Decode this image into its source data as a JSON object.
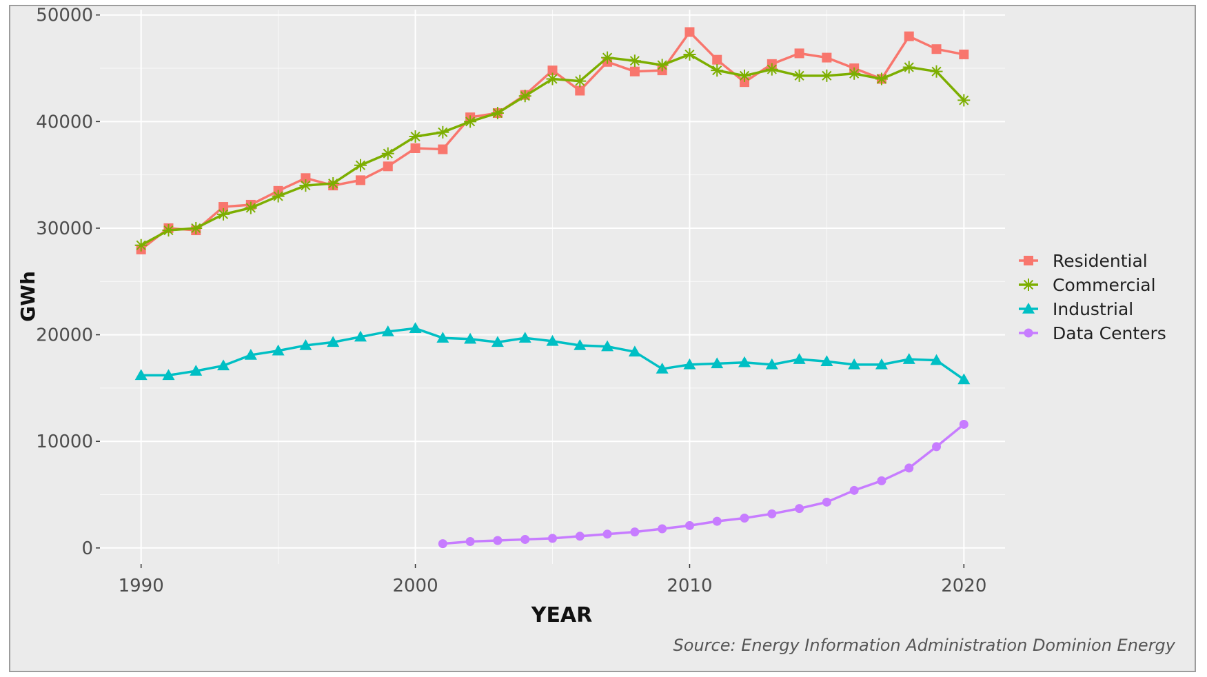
{
  "chart_data": {
    "type": "line",
    "title": "",
    "xlabel": "YEAR",
    "ylabel": "GWh",
    "xlim": [
      1988.5,
      2021.5
    ],
    "ylim": [
      -1500,
      50500
    ],
    "x_ticks": [
      1990,
      2000,
      2010,
      2020
    ],
    "y_ticks": [
      0,
      10000,
      20000,
      30000,
      40000,
      50000
    ],
    "x_tick_labels": [
      "1990",
      "2000",
      "2010",
      "2020"
    ],
    "y_tick_labels": [
      "0",
      "10000",
      "20000",
      "30000",
      "40000",
      "50000"
    ],
    "grid": true,
    "legend_position": "right",
    "source": "Source: Energy Information Administration Dominion Energy",
    "colors": {
      "panel_bg": "#ebebeb",
      "grid": "#ffffff",
      "axis_text": "#4d4d4d"
    },
    "series": [
      {
        "name": "Residential",
        "color": "#f8766d",
        "marker": "square",
        "x": [
          1990,
          1991,
          1992,
          1993,
          1994,
          1995,
          1996,
          1997,
          1998,
          1999,
          2000,
          2001,
          2002,
          2003,
          2004,
          2005,
          2006,
          2007,
          2008,
          2009,
          2010,
          2011,
          2012,
          2013,
          2014,
          2015,
          2016,
          2017,
          2018,
          2019,
          2020
        ],
        "values": [
          28000,
          30000,
          29800,
          32000,
          32200,
          33500,
          34700,
          34000,
          34500,
          35800,
          37500,
          37400,
          40400,
          40800,
          42500,
          44800,
          42900,
          45600,
          44700,
          44800,
          48400,
          45800,
          43700,
          45400,
          46400,
          46000,
          45000,
          44000,
          48000,
          46800,
          46300
        ]
      },
      {
        "name": "Commercial",
        "color": "#7cae00",
        "marker": "asterisk",
        "x": [
          1990,
          1991,
          1992,
          1993,
          1994,
          1995,
          1996,
          1997,
          1998,
          1999,
          2000,
          2001,
          2002,
          2003,
          2004,
          2005,
          2006,
          2007,
          2008,
          2009,
          2010,
          2011,
          2012,
          2013,
          2014,
          2015,
          2016,
          2017,
          2018,
          2019,
          2020
        ],
        "values": [
          28400,
          29800,
          30000,
          31300,
          31900,
          33000,
          34000,
          34200,
          35900,
          37000,
          38600,
          39000,
          40000,
          40800,
          42400,
          44000,
          43800,
          46000,
          45700,
          45300,
          46300,
          44800,
          44300,
          44900,
          44300,
          44300,
          44500,
          44000,
          45100,
          44700,
          42000
        ]
      },
      {
        "name": "Industrial",
        "color": "#00bfc4",
        "marker": "triangle",
        "x": [
          1990,
          1991,
          1992,
          1993,
          1994,
          1995,
          1996,
          1997,
          1998,
          1999,
          2000,
          2001,
          2002,
          2003,
          2004,
          2005,
          2006,
          2007,
          2008,
          2009,
          2010,
          2011,
          2012,
          2013,
          2014,
          2015,
          2016,
          2017,
          2018,
          2019,
          2020
        ],
        "values": [
          16200,
          16200,
          16600,
          17100,
          18100,
          18500,
          19000,
          19300,
          19800,
          20300,
          20600,
          19700,
          19600,
          19300,
          19700,
          19400,
          19000,
          18900,
          18400,
          16800,
          17200,
          17300,
          17400,
          17200,
          17700,
          17500,
          17200,
          17200,
          17700,
          17600,
          15800
        ]
      },
      {
        "name": "Data Centers",
        "color": "#c77cff",
        "marker": "circle",
        "x": [
          2001,
          2002,
          2003,
          2004,
          2005,
          2006,
          2007,
          2008,
          2009,
          2010,
          2011,
          2012,
          2013,
          2014,
          2015,
          2016,
          2017,
          2018,
          2019,
          2020
        ],
        "values": [
          400,
          600,
          700,
          800,
          900,
          1100,
          1300,
          1500,
          1800,
          2100,
          2500,
          2800,
          3200,
          3700,
          4300,
          5400,
          6300,
          7500,
          9500,
          11600
        ]
      }
    ]
  }
}
